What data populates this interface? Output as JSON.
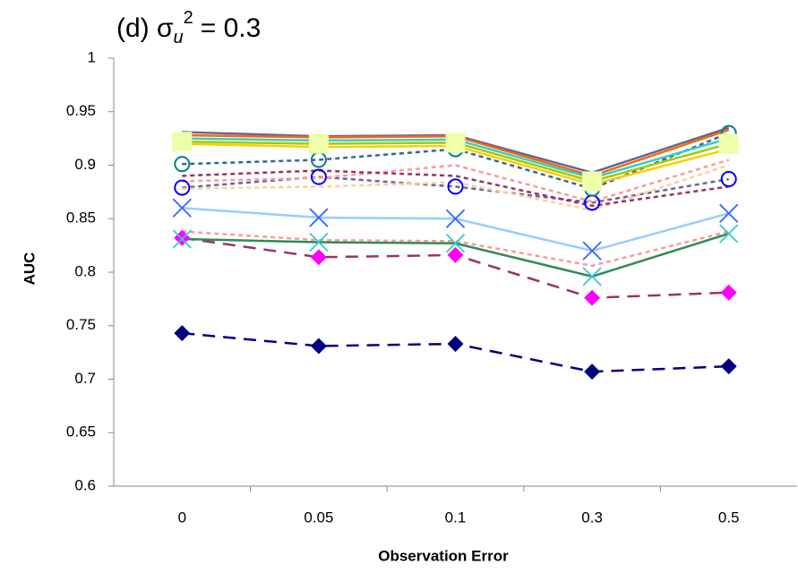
{
  "chart_data": {
    "type": "line",
    "title_parts": [
      "(d) σ",
      "u",
      "2",
      "= 0.3"
    ],
    "x_label": "Observation Error",
    "y_label": "AUC",
    "categories": [
      "0",
      "0.05",
      "0.1",
      "0.3",
      "0.5"
    ],
    "ylim": [
      0.6,
      1
    ],
    "yticks": [
      0.6,
      0.65,
      0.7,
      0.75,
      0.8,
      0.85,
      0.9,
      0.95,
      1
    ],
    "grid": false,
    "series": [
      {
        "color": "#000080",
        "dash": "14,9",
        "marker": "diamond",
        "marker_color": "#000080",
        "values": [
          0.743,
          0.731,
          0.733,
          0.707,
          0.712
        ]
      },
      {
        "color": "#993366",
        "dash": "14,9",
        "marker": "diamond",
        "marker_color": "#ff00ff",
        "values": [
          0.832,
          0.814,
          0.816,
          0.776,
          0.781
        ]
      },
      {
        "color": "#2e8b57",
        "dash": "none",
        "marker": "x",
        "marker_color": "#33cccc",
        "values": [
          0.831,
          0.828,
          0.827,
          0.796,
          0.836
        ]
      },
      {
        "color": "#99ccff",
        "dash": "none",
        "marker": "x",
        "marker_color": "#3366ff",
        "values": [
          0.86,
          0.851,
          0.85,
          0.82,
          0.855
        ]
      },
      {
        "color": "#ff9999",
        "dash": "5,4",
        "marker": "none",
        "marker_color": "#ff9999",
        "values": [
          0.838,
          0.83,
          0.829,
          0.806,
          0.838
        ]
      },
      {
        "color": "#666699",
        "dash": "5,4",
        "marker": "circle",
        "marker_color": "#0000ff",
        "values": [
          0.879,
          0.889,
          0.88,
          0.865,
          0.887
        ]
      },
      {
        "color": "#336699",
        "dash": "5,4",
        "marker": "circle",
        "marker_color": "#008080",
        "values": [
          0.901,
          0.905,
          0.915,
          0.878,
          0.93
        ]
      },
      {
        "color": "#ff9999",
        "dash": "5,4",
        "marker": "none",
        "marker_color": "#ff9999",
        "values": [
          0.885,
          0.888,
          0.9,
          0.866,
          0.905
        ]
      },
      {
        "color": "#ffcc99",
        "dash": "5,4",
        "marker": "none",
        "marker_color": "#ffcc99",
        "values": [
          0.878,
          0.88,
          0.884,
          0.858,
          0.9
        ]
      },
      {
        "color": "#993366",
        "dash": "5,4",
        "marker": "none",
        "marker_color": "#993366",
        "values": [
          0.89,
          0.895,
          0.89,
          0.862,
          0.88
        ]
      },
      {
        "color": "#666699",
        "dash": "none",
        "marker": "none",
        "marker_color": "#666699",
        "values": [
          0.931,
          0.927,
          0.928,
          0.893,
          0.935
        ]
      },
      {
        "color": "#ff6600",
        "dash": "none",
        "marker": "none",
        "marker_color": "#ff6600",
        "values": [
          0.928,
          0.926,
          0.927,
          0.89,
          0.933
        ]
      },
      {
        "color": "#33cccc",
        "dash": "none",
        "marker": "none",
        "marker_color": "#33cccc",
        "values": [
          0.925,
          0.923,
          0.924,
          0.888,
          0.925
        ]
      },
      {
        "color": "#99cc00",
        "dash": "none",
        "marker": "square",
        "marker_color": "#eeffaa",
        "values": [
          0.922,
          0.92,
          0.921,
          0.885,
          0.92
        ]
      },
      {
        "color": "#ffcc00",
        "dash": "none",
        "marker": "none",
        "marker_color": "#ffcc00",
        "values": [
          0.92,
          0.917,
          0.918,
          0.882,
          0.915
        ]
      }
    ]
  }
}
